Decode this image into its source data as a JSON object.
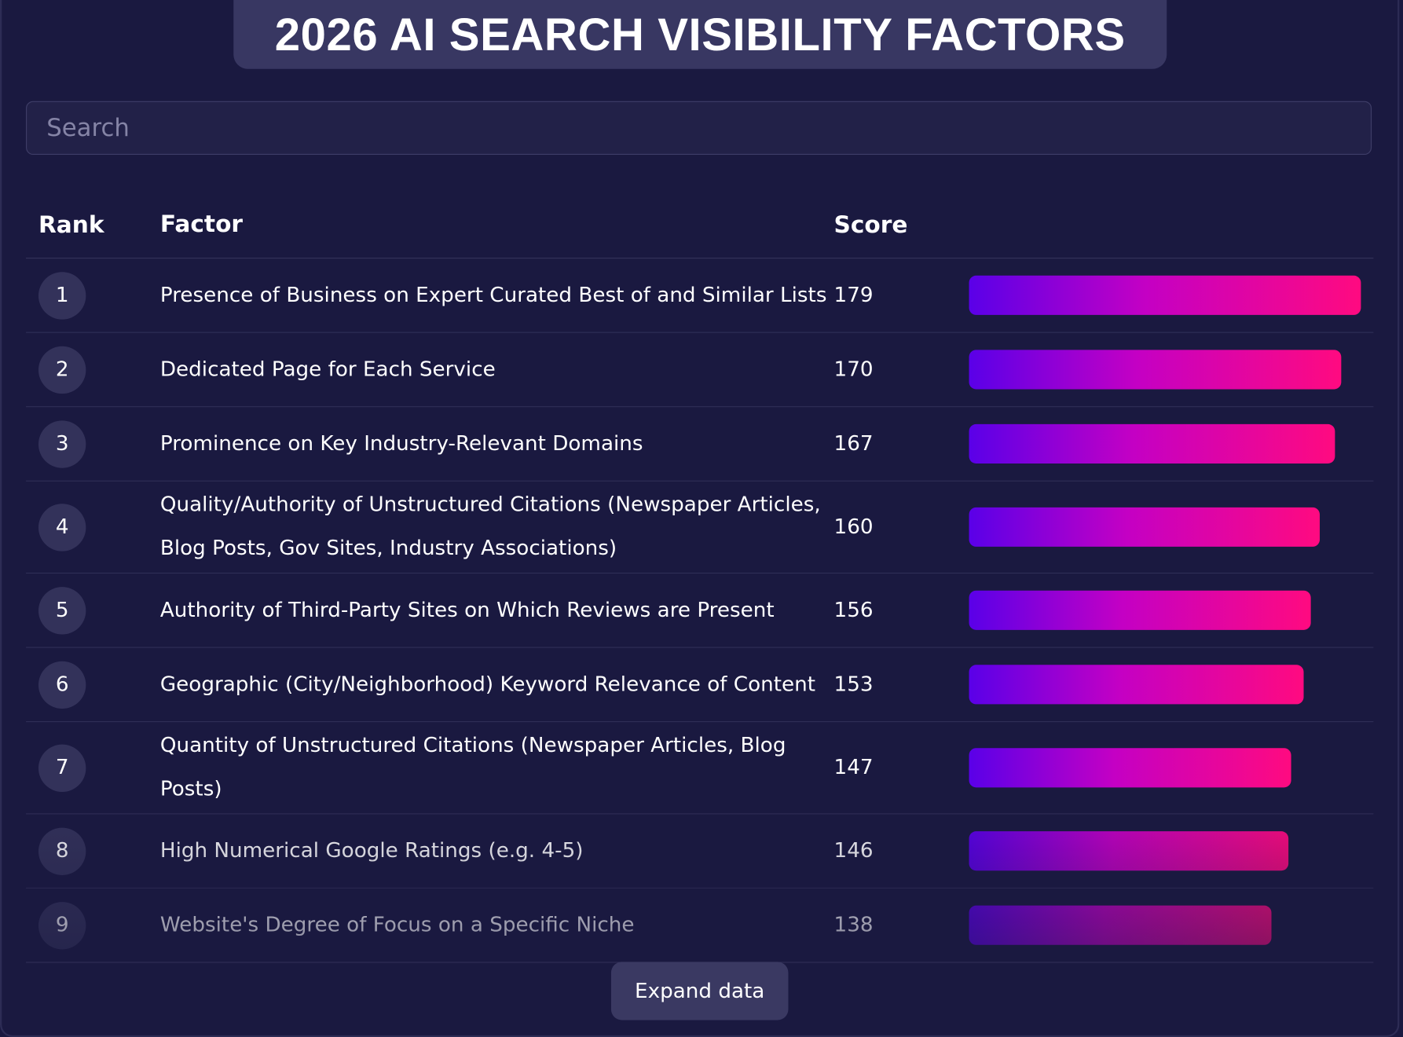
{
  "header": {
    "title": "2026 AI SEARCH VISIBILITY FACTORS"
  },
  "search": {
    "placeholder": "Search"
  },
  "table": {
    "columns": [
      "Rank",
      "Factor",
      "Score"
    ],
    "rows": [
      {
        "rank": "1",
        "factor": "Presence of Business on Expert Curated Best of and Similar Lists",
        "score": 179
      },
      {
        "rank": "2",
        "factor": "Dedicated Page for Each Service",
        "score": 170
      },
      {
        "rank": "3",
        "factor": "Prominence on Key Industry-Relevant Domains",
        "score": 167
      },
      {
        "rank": "4",
        "factor": "Quality/Authority of Unstructured Citations (Newspaper Articles, Blog Posts, Gov Sites, Industry Associations)",
        "score": 160
      },
      {
        "rank": "5",
        "factor": "Authority of Third-Party Sites on Which Reviews are Present",
        "score": 156
      },
      {
        "rank": "6",
        "factor": "Geographic (City/Neighborhood) Keyword Relevance of Content",
        "score": 153
      },
      {
        "rank": "7",
        "factor": "Quantity of Unstructured Citations (Newspaper Articles, Blog Posts)",
        "score": 147
      },
      {
        "rank": "8",
        "factor": "High Numerical Google Ratings (e.g. 4-5)",
        "score": 146
      },
      {
        "rank": "9",
        "factor": "Website's Degree of Focus on a Specific Niche",
        "score": 138
      }
    ]
  },
  "button": {
    "label": "Expand data"
  }
}
